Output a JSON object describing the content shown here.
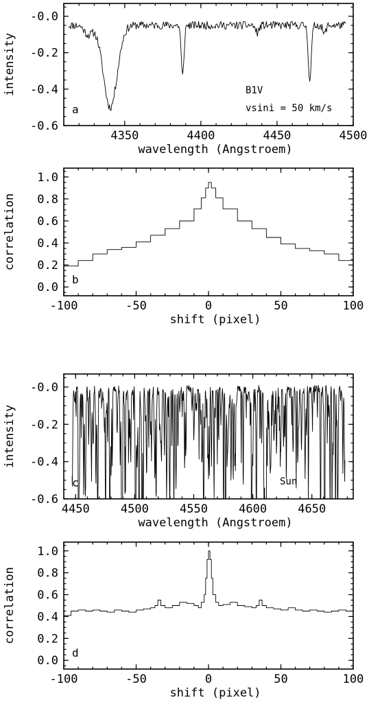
{
  "chart_data": [
    {
      "id": "a",
      "type": "line",
      "panel_label": "a",
      "xlabel": "wavelength (Angstroem)",
      "ylabel": "intensity",
      "xlim": [
        4310,
        4500
      ],
      "ylim": [
        -0.6,
        0.07
      ],
      "xticks": [
        4350,
        4400,
        4450,
        4500
      ],
      "yticks": [
        -0.6,
        -0.4,
        -0.2,
        0.0
      ],
      "ytick_labels": [
        "-0.6",
        "-0.4",
        "-0.2",
        "-0.0"
      ],
      "annotations": [
        "B1V",
        "vsini = 50 km/s"
      ],
      "series": [
        {
          "kind": "noisy-spectrum",
          "x_range": [
            4313,
            4495
          ],
          "baseline": -0.05,
          "noise": 0.022,
          "step": 0.5,
          "seed": 11,
          "lines": [
            {
              "center": 4340.5,
              "depth": 0.45,
              "width": 4.5
            },
            {
              "center": 4388,
              "depth": 0.28,
              "width": 0.9
            },
            {
              "center": 4471.5,
              "depth": 0.3,
              "width": 1.0
            },
            {
              "center": 4326,
              "depth": 0.05,
              "width": 2.5
            },
            {
              "center": 4437,
              "depth": 0.04,
              "width": 1.2
            },
            {
              "center": 4481,
              "depth": 0.05,
              "width": 1.0
            }
          ]
        }
      ]
    },
    {
      "id": "b",
      "type": "line",
      "panel_label": "b",
      "xlabel": "shift (pixel)",
      "ylabel": "correlation",
      "xlim": [
        -100,
        100
      ],
      "ylim": [
        -0.08,
        1.08
      ],
      "xticks": [
        -100,
        -50,
        0,
        50,
        100
      ],
      "yticks": [
        0.0,
        0.2,
        0.4,
        0.6,
        0.8,
        1.0
      ],
      "ytick_labels": [
        "0.0",
        "0.2",
        "0.4",
        "0.6",
        "0.8",
        "1.0"
      ],
      "series": [
        {
          "kind": "step-curve",
          "x": [
            -100,
            -90,
            -80,
            -70,
            -60,
            -50,
            -40,
            -30,
            -20,
            -10,
            -5,
            -2,
            0,
            2,
            5,
            10,
            20,
            30,
            40,
            50,
            60,
            70,
            80,
            90,
            100
          ],
          "y": [
            0.19,
            0.24,
            0.3,
            0.34,
            0.36,
            0.41,
            0.47,
            0.53,
            0.6,
            0.71,
            0.81,
            0.9,
            0.95,
            0.9,
            0.81,
            0.71,
            0.6,
            0.53,
            0.45,
            0.39,
            0.35,
            0.33,
            0.3,
            0.24,
            0.19
          ]
        }
      ]
    },
    {
      "id": "c",
      "type": "line",
      "panel_label": "c",
      "xlabel": "wavelength (Angstroem)",
      "ylabel": "intensity",
      "xlim": [
        4440,
        4685
      ],
      "ylim": [
        -0.6,
        0.07
      ],
      "xticks": [
        4450,
        4500,
        4550,
        4600,
        4650
      ],
      "yticks": [
        -0.6,
        -0.4,
        -0.2,
        0.0
      ],
      "ytick_labels": [
        "-0.6",
        "-0.4",
        "-0.2",
        "-0.0"
      ],
      "annotations": [
        "Sun"
      ],
      "series": [
        {
          "kind": "dense-absorption",
          "x_range": [
            4447,
            4678
          ],
          "baseline": -0.01,
          "noise": 0.02,
          "step": 0.25,
          "seed": 7,
          "n_lines": 430,
          "max_depth": 0.58
        }
      ]
    },
    {
      "id": "d",
      "type": "line",
      "panel_label": "d",
      "xlabel": "shift (pixel)",
      "ylabel": "correlation",
      "xlim": [
        -100,
        100
      ],
      "ylim": [
        -0.08,
        1.08
      ],
      "xticks": [
        -100,
        -50,
        0,
        50,
        100
      ],
      "yticks": [
        0.0,
        0.2,
        0.4,
        0.6,
        0.8,
        1.0
      ],
      "ytick_labels": [
        "0.0",
        "0.2",
        "0.4",
        "0.6",
        "0.8",
        "1.0"
      ],
      "series": [
        {
          "kind": "step-curve",
          "x": [
            -100,
            -95,
            -90,
            -85,
            -80,
            -75,
            -70,
            -65,
            -60,
            -55,
            -50,
            -45,
            -40,
            -37,
            -35,
            -33,
            -30,
            -25,
            -20,
            -15,
            -10,
            -7,
            -5,
            -3,
            -2,
            -1,
            0,
            1,
            2,
            3,
            5,
            7,
            10,
            15,
            20,
            25,
            30,
            33,
            35,
            37,
            40,
            45,
            50,
            55,
            60,
            65,
            70,
            75,
            80,
            85,
            90,
            95,
            100
          ],
          "y": [
            0.41,
            0.45,
            0.46,
            0.45,
            0.46,
            0.45,
            0.44,
            0.46,
            0.45,
            0.44,
            0.46,
            0.47,
            0.48,
            0.5,
            0.55,
            0.5,
            0.48,
            0.5,
            0.53,
            0.52,
            0.5,
            0.48,
            0.53,
            0.6,
            0.75,
            0.92,
            1.0,
            0.92,
            0.75,
            0.6,
            0.53,
            0.5,
            0.51,
            0.53,
            0.5,
            0.49,
            0.48,
            0.5,
            0.55,
            0.5,
            0.48,
            0.47,
            0.46,
            0.48,
            0.46,
            0.45,
            0.46,
            0.45,
            0.44,
            0.45,
            0.46,
            0.45,
            0.41
          ]
        }
      ]
    }
  ]
}
